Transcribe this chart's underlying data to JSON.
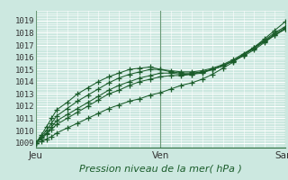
{
  "title": "",
  "xlabel": "Pression niveau de la mer( hPa )",
  "bg_color": "#cce8e0",
  "grid_major_color": "#ffffff",
  "grid_minor_color": "#dff0eb",
  "line_color": "#1a5c2a",
  "marker_color": "#1a5c2a",
  "ylim": [
    1008.6,
    1019.4
  ],
  "xlim": [
    0,
    48
  ],
  "yticks": [
    1009,
    1010,
    1011,
    1012,
    1013,
    1014,
    1015,
    1016,
    1017,
    1018,
    1019
  ],
  "xtick_labels": [
    "Jeu",
    "Ven",
    "Sam"
  ],
  "xtick_positions": [
    0,
    24,
    48
  ],
  "series": [
    {
      "x": [
        0,
        1,
        2,
        3,
        4,
        6,
        8,
        10,
        12,
        14,
        16,
        18,
        20,
        22,
        24,
        26,
        28,
        30,
        32,
        34,
        36,
        38,
        40,
        42,
        44,
        46,
        48
      ],
      "y": [
        1009.0,
        1009.1,
        1009.3,
        1009.5,
        1009.8,
        1010.2,
        1010.6,
        1011.0,
        1011.4,
        1011.8,
        1012.1,
        1012.4,
        1012.6,
        1012.9,
        1013.1,
        1013.4,
        1013.7,
        1013.9,
        1014.2,
        1014.6,
        1015.1,
        1015.6,
        1016.2,
        1016.8,
        1017.4,
        1018.0,
        1018.5
      ]
    },
    {
      "x": [
        0,
        1,
        2,
        3,
        4,
        6,
        8,
        10,
        12,
        14,
        16,
        18,
        20,
        22,
        24,
        26,
        28,
        30,
        32,
        34,
        36,
        38,
        40,
        42,
        44,
        46,
        48
      ],
      "y": [
        1009.0,
        1009.3,
        1009.7,
        1010.1,
        1010.5,
        1011.0,
        1011.5,
        1012.0,
        1012.5,
        1013.0,
        1013.3,
        1013.7,
        1014.0,
        1014.2,
        1014.4,
        1014.5,
        1014.5,
        1014.6,
        1014.8,
        1015.0,
        1015.3,
        1015.7,
        1016.1,
        1016.6,
        1017.2,
        1017.8,
        1018.3
      ]
    },
    {
      "x": [
        0,
        1,
        2,
        3,
        4,
        6,
        8,
        10,
        12,
        14,
        16,
        18,
        20,
        22,
        24,
        26,
        28,
        30,
        32,
        34,
        36,
        38,
        40,
        42,
        44,
        46,
        48
      ],
      "y": [
        1009.0,
        1009.4,
        1009.8,
        1010.3,
        1010.8,
        1011.3,
        1011.8,
        1012.3,
        1012.8,
        1013.3,
        1013.7,
        1014.0,
        1014.3,
        1014.5,
        1014.7,
        1014.7,
        1014.6,
        1014.6,
        1014.7,
        1015.0,
        1015.3,
        1015.7,
        1016.2,
        1016.7,
        1017.3,
        1017.8,
        1018.3
      ]
    },
    {
      "x": [
        0,
        1,
        2,
        3,
        4,
        6,
        8,
        10,
        12,
        14,
        16,
        18,
        20,
        22,
        24,
        26,
        28,
        30,
        32,
        34,
        36,
        38,
        40,
        42,
        44,
        46,
        48
      ],
      "y": [
        1009.0,
        1009.5,
        1010.0,
        1010.6,
        1011.2,
        1011.8,
        1012.4,
        1012.9,
        1013.4,
        1013.9,
        1014.3,
        1014.6,
        1014.8,
        1015.0,
        1015.0,
        1014.9,
        1014.8,
        1014.8,
        1014.9,
        1015.1,
        1015.4,
        1015.8,
        1016.3,
        1016.8,
        1017.3,
        1017.9,
        1018.4
      ]
    },
    {
      "x": [
        0,
        1,
        2,
        3,
        4,
        6,
        8,
        10,
        12,
        14,
        16,
        18,
        20,
        22,
        24,
        26,
        28,
        30,
        32,
        34,
        36,
        38,
        40,
        42,
        44,
        46,
        48
      ],
      "y": [
        1009.0,
        1009.6,
        1010.3,
        1011.0,
        1011.7,
        1012.3,
        1013.0,
        1013.5,
        1014.0,
        1014.4,
        1014.7,
        1015.0,
        1015.1,
        1015.2,
        1015.0,
        1014.8,
        1014.7,
        1014.7,
        1014.8,
        1015.0,
        1015.3,
        1015.7,
        1016.2,
        1016.8,
        1017.5,
        1018.2,
        1018.9
      ]
    }
  ]
}
